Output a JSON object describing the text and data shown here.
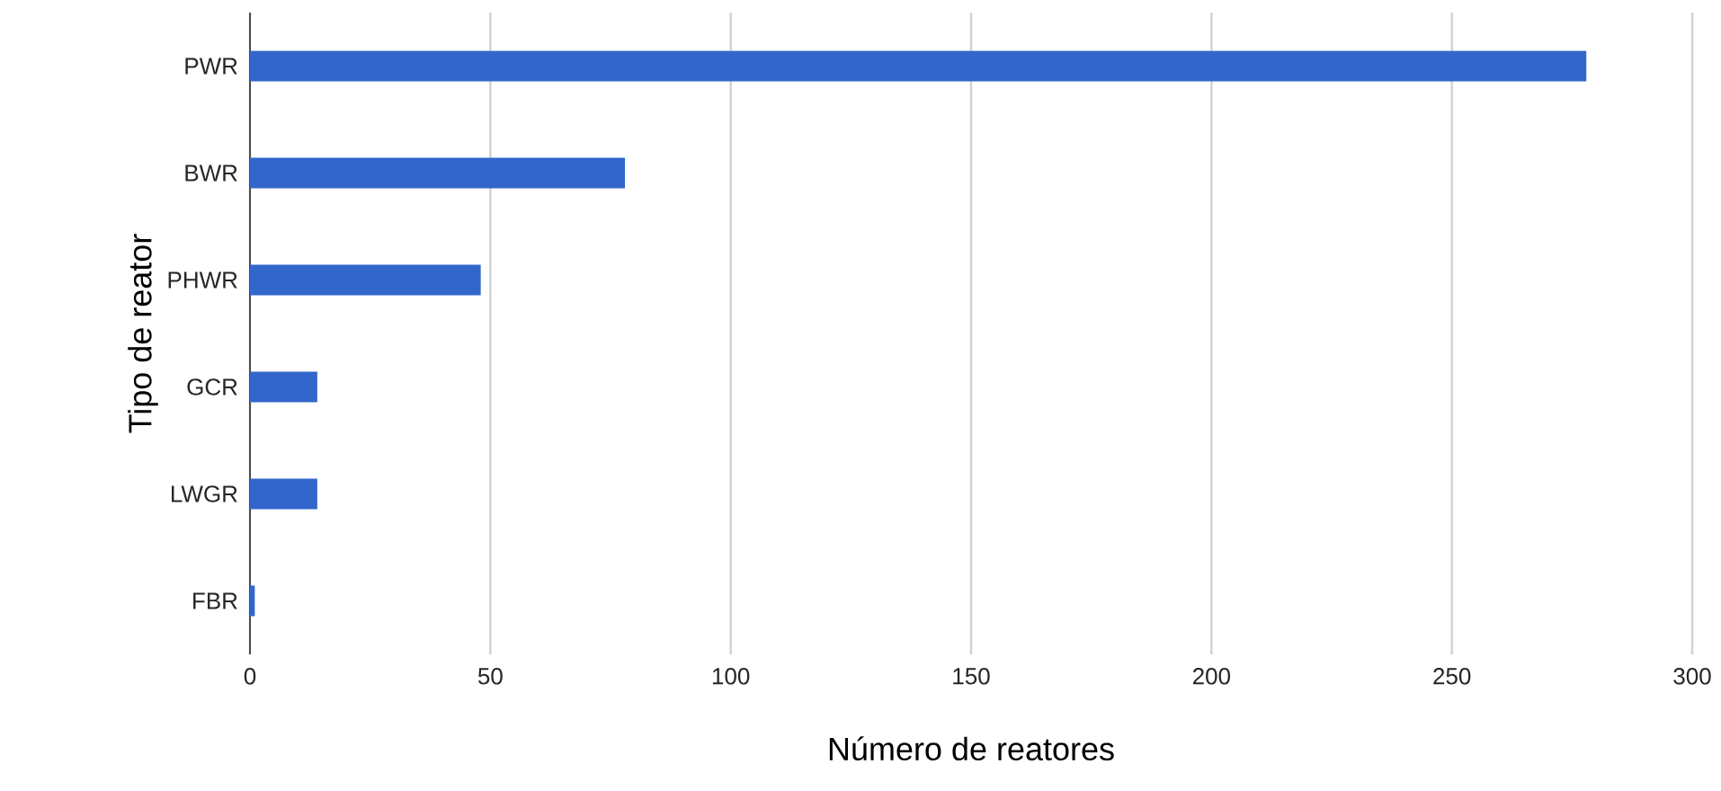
{
  "chart_data": {
    "type": "bar",
    "orientation": "horizontal",
    "xlabel": "Número de reatores",
    "ylabel": "Tipo de reator",
    "categories": [
      "PWR",
      "BWR",
      "PHWR",
      "GCR",
      "LWGR",
      "FBR"
    ],
    "values": [
      278,
      78,
      48,
      14,
      14,
      1
    ],
    "color": "#3366cc",
    "xlim": [
      0,
      300
    ],
    "xticks": [
      0,
      50,
      100,
      150,
      200,
      250,
      300
    ],
    "grid": "x"
  }
}
